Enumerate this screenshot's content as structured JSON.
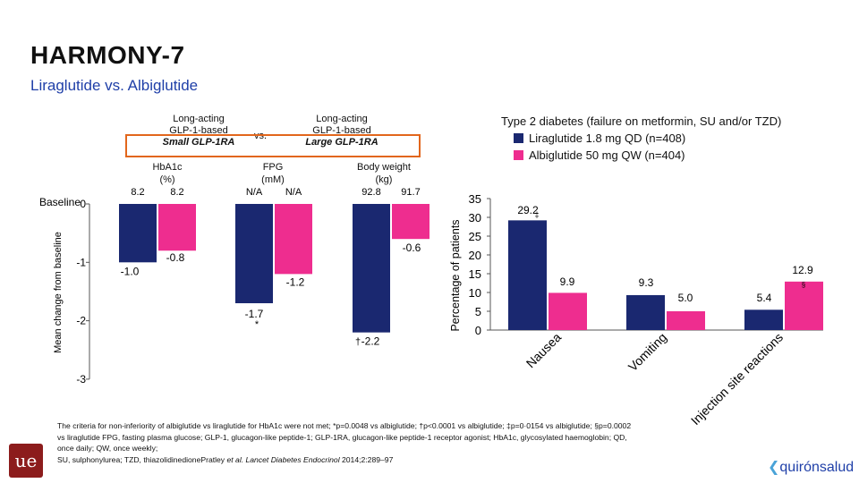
{
  "page": {
    "title": "HARMONY-7",
    "subtitle": "Liraglutide vs. Albiglutide"
  },
  "header": {
    "left_line1": "Long-acting",
    "left_line2": "GLP-1-based",
    "left_line3": "Small GLP-1RA",
    "vs": "vs.",
    "right_line1": "Long-acting",
    "right_line2": "GLP-1-based",
    "right_line3": "Large GLP-1RA"
  },
  "legend": {
    "title": "Type 2 diabetes (failure on metformin, SU and/or TZD)",
    "items": [
      {
        "label": "Liraglutide 1.8 mg QD (n=408)",
        "color": "#1a2870"
      },
      {
        "label": "Albiglutide 50 mg QW (n=404)",
        "color": "#ee2d8f"
      }
    ]
  },
  "chart_data": [
    {
      "type": "bar",
      "ylabel": "Mean change from baseline",
      "baseline_label": "Baseline",
      "ylim": [
        -3,
        0
      ],
      "yticks": [
        "0",
        "-1",
        "-2",
        "-3"
      ],
      "groups": [
        {
          "header_line1": "HbA1c",
          "header_line2": "(%)",
          "baseline": [
            "8.2",
            "8.2"
          ],
          "values": [
            -1.0,
            -0.8
          ],
          "labels": [
            "-1.0",
            "-0.8"
          ],
          "marker": ""
        },
        {
          "header_line1": "FPG",
          "header_line2": "(mM)",
          "baseline": [
            "N/A",
            "N/A"
          ],
          "values": [
            -1.7,
            -1.2
          ],
          "labels": [
            "-1.7",
            "-1.2"
          ],
          "marker": "*"
        },
        {
          "header_line1": "Body weight",
          "header_line2": "(kg)",
          "baseline": [
            "92.8",
            "91.7"
          ],
          "values": [
            -2.2,
            -0.6
          ],
          "labels": [
            "-2.2",
            "-0.6"
          ],
          "marker": "†"
        }
      ],
      "series": [
        {
          "name": "Liraglutide 1.8 mg QD (n=408)",
          "color": "#1a2870"
        },
        {
          "name": "Albiglutide 50 mg QW (n=404)",
          "color": "#ee2d8f"
        }
      ]
    },
    {
      "type": "bar",
      "ylabel": "Percentage of patients",
      "ylim": [
        0,
        35
      ],
      "yticks": [
        "35",
        "30",
        "25",
        "20",
        "15",
        "10",
        "5",
        "0"
      ],
      "categories": [
        "Nausea",
        "Vomiting",
        "Injection site reactions"
      ],
      "series": [
        {
          "name": "Liraglutide 1.8 mg QD (n=408)",
          "values": [
            29.2,
            9.3,
            5.4
          ],
          "labels": [
            "29.2",
            "9.3",
            "5.4"
          ],
          "color": "#1a2870"
        },
        {
          "name": "Albiglutide 50 mg QW (n=404)",
          "values": [
            9.9,
            5.0,
            12.9
          ],
          "labels": [
            "9.9",
            "5.0",
            "12.9"
          ],
          "color": "#ee2d8f"
        }
      ],
      "markers": [
        "‡",
        "",
        "§"
      ]
    }
  ],
  "footer": {
    "line1": "The criteria for non-inferiority of albiglutide vs liraglutide for HbA1c were not met; *p=0.0048 vs albiglutide; †p<0.0001 vs albiglutide; ‡p=0·0154 vs albiglutide; §p=0.0002",
    "line2": "vs liraglutide FPG, fasting plasma glucose; GLP-1, glucagon-like peptide-1; GLP-1RA, glucagon-like peptide-1 receptor agonist; HbA1c, glycosylated haemoglobin; QD,",
    "line3": "once daily; QW, once weekly;",
    "line4a": "SU, sulphonylurea; TZD, thiazolidinedionePratley ",
    "line4b": "et al. Lancet Diabetes Endocrinol",
    "line4c": " 2014;2:289–97"
  },
  "logos": {
    "left_mark": "ue",
    "right_text": "quirónsalud"
  }
}
